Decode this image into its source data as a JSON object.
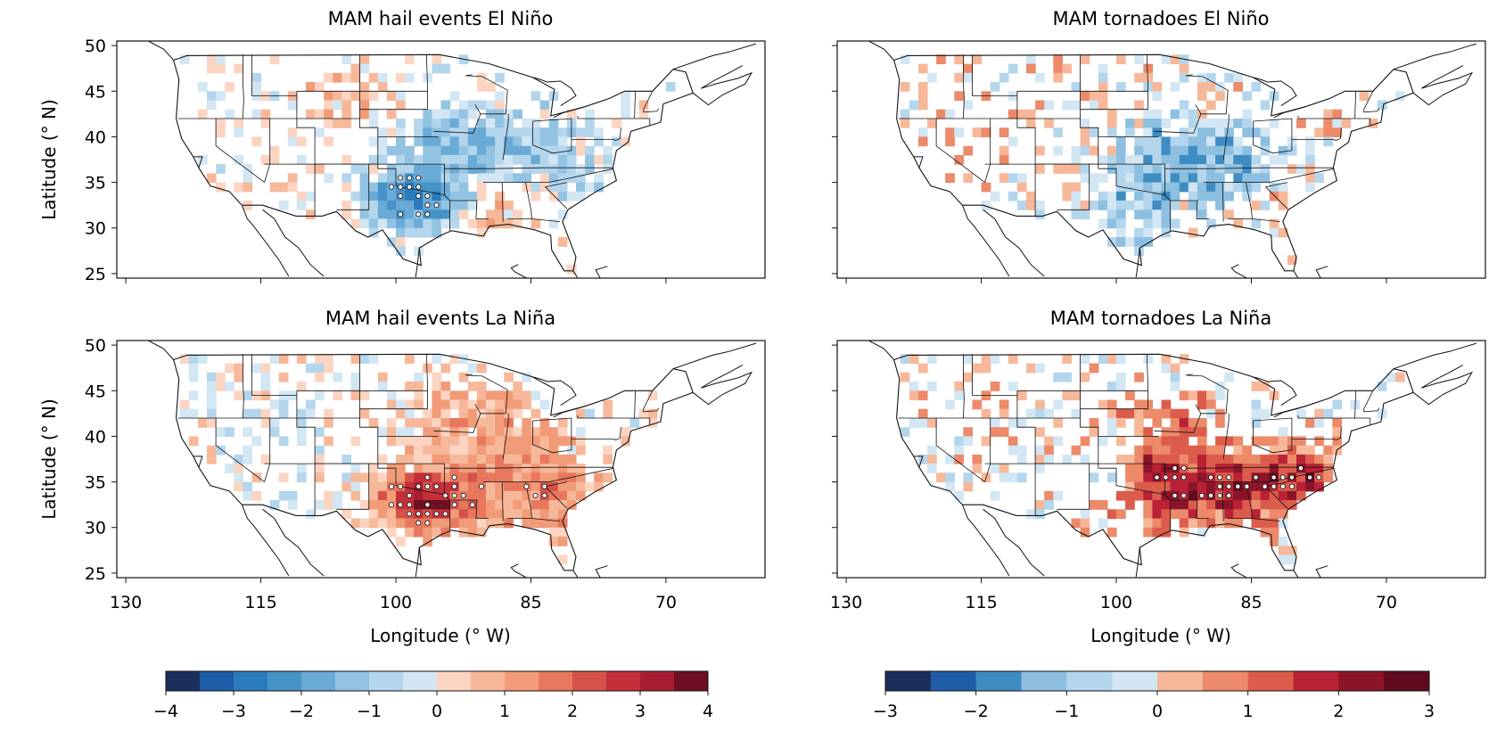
{
  "figure": {
    "ylabel": "Latitude (° N)",
    "xlabel": "Longitude (° W)"
  },
  "panels": [
    {
      "title": "MAM hail events El Niño",
      "colorbar": "hail",
      "seed": 11,
      "pattern": "hail_elnino"
    },
    {
      "title": "MAM tornadoes El Niño",
      "colorbar": "tornado",
      "seed": 23,
      "pattern": "tor_elnino"
    },
    {
      "title": "MAM hail events La Niña",
      "colorbar": "hail",
      "seed": 37,
      "pattern": "hail_lanina"
    },
    {
      "title": "MAM tornadoes La Niña",
      "colorbar": "tornado",
      "seed": 53,
      "pattern": "tor_lanina"
    }
  ],
  "axes": {
    "lon_range": [
      131,
      59
    ],
    "lat_range": [
      24.5,
      50.5
    ],
    "lat_ticks": [
      "50",
      "45",
      "40",
      "35",
      "30",
      "25"
    ],
    "lat_tick_values": [
      50,
      45,
      40,
      35,
      30,
      25
    ],
    "lon_ticks": [
      "130",
      "115",
      "100",
      "85",
      "70"
    ],
    "lon_tick_values": [
      130,
      115,
      100,
      85,
      70
    ]
  },
  "colorbars": {
    "hail": {
      "ticks": [
        "−4",
        "−3",
        "−2",
        "−1",
        "0",
        "1",
        "2",
        "3",
        "4"
      ],
      "colors": [
        "#1b2f5c",
        "#1f5da8",
        "#2b7bbd",
        "#4593c7",
        "#6aaad6",
        "#93c3e2",
        "#b3d6ed",
        "#d2e6f3",
        "#fcd4c2",
        "#f7b89a",
        "#f29b78",
        "#e8785d",
        "#d65249",
        "#c3303a",
        "#a81d31",
        "#6e0e22"
      ]
    },
    "tornado": {
      "ticks": [
        "−3",
        "−2",
        "−1",
        "0",
        "1",
        "2",
        "3"
      ],
      "colors": [
        "#1b2f5c",
        "#1f5da8",
        "#3f8cc3",
        "#8dbfe0",
        "#b3d6ed",
        "#d2e6f3",
        "#f7b89a",
        "#ec8a6a",
        "#dc5c4c",
        "#b92236",
        "#8c1428",
        "#5f0a1f"
      ]
    }
  }
}
